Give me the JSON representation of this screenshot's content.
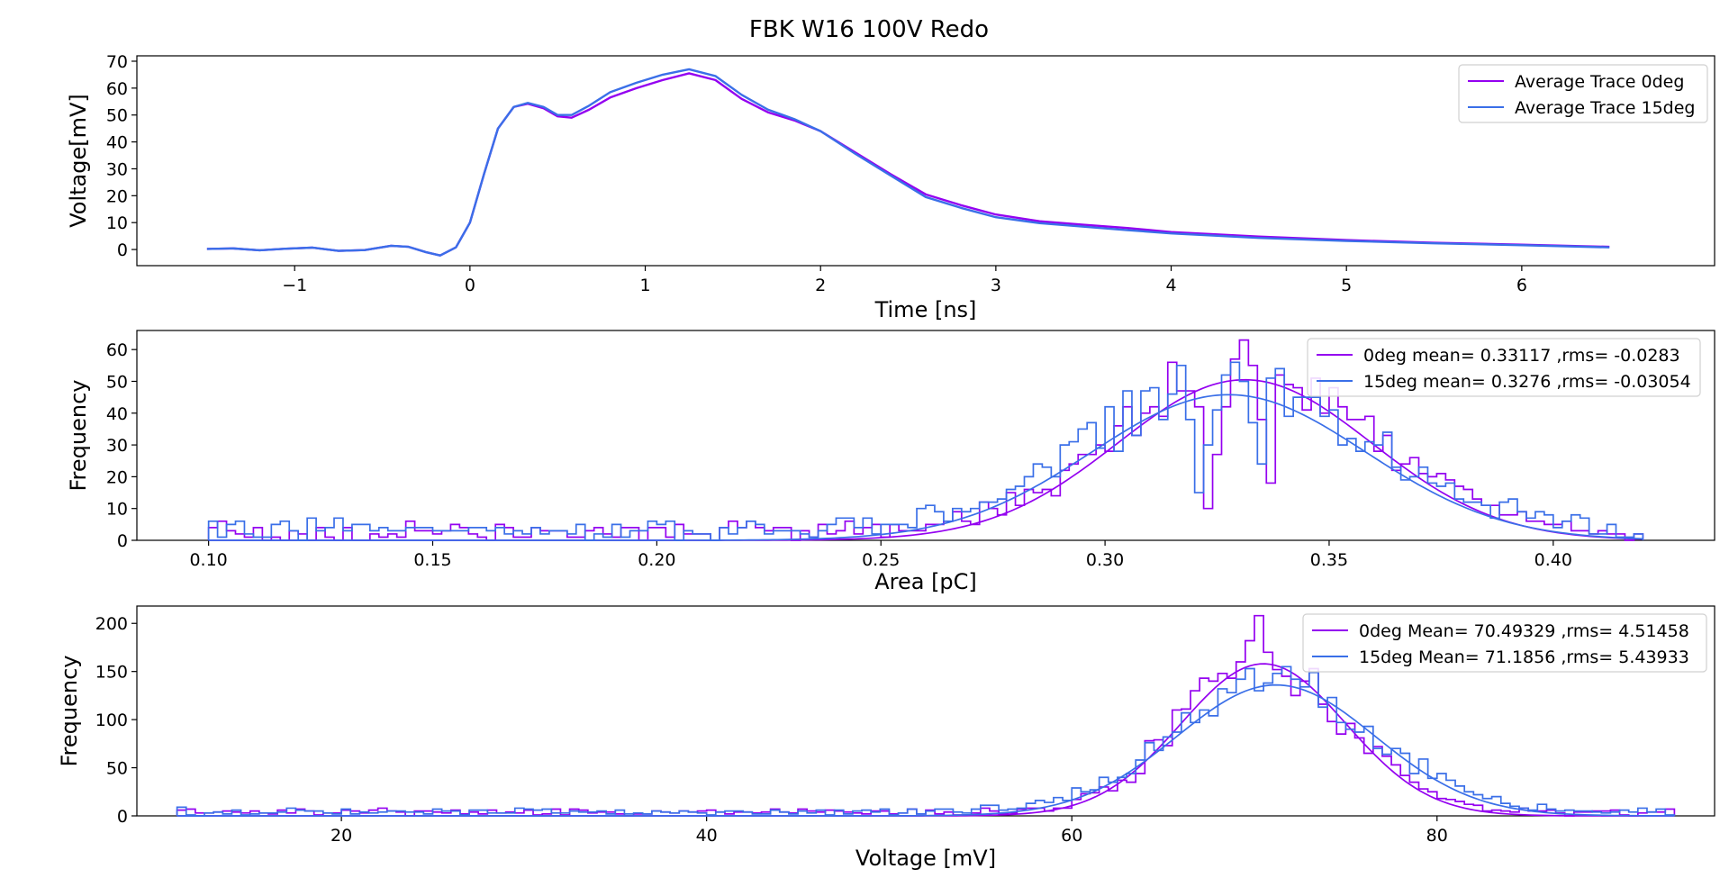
{
  "figure": {
    "suptitle": "FBK W16 100V Redo"
  },
  "colors": {
    "deg0": "#9400f0",
    "deg15": "#3a6fe8"
  },
  "chart_data": [
    {
      "type": "line",
      "xlabel": "Time [ns]",
      "ylabel": "Voltage[mV]",
      "xlim": [
        -1.9,
        7.1
      ],
      "ylim": [
        -6,
        72
      ],
      "xticks": [
        -1,
        0,
        1,
        2,
        3,
        4,
        5,
        6
      ],
      "xtick_labels": [
        "−1",
        "0",
        "1",
        "2",
        "3",
        "4",
        "5",
        "6"
      ],
      "yticks": [
        0,
        10,
        20,
        30,
        40,
        50,
        60,
        70
      ],
      "grid": false,
      "legend_position": "top-right",
      "series": [
        {
          "name": "Average Trace 0deg",
          "color": "#9400f0",
          "x": [
            -1.5,
            -1.35,
            -1.2,
            -1.05,
            -0.9,
            -0.75,
            -0.6,
            -0.45,
            -0.35,
            -0.25,
            -0.17,
            -0.08,
            0.0,
            0.08,
            0.16,
            0.25,
            0.33,
            0.42,
            0.5,
            0.58,
            0.68,
            0.8,
            0.95,
            1.1,
            1.25,
            1.4,
            1.55,
            1.7,
            1.85,
            2.0,
            2.2,
            2.4,
            2.6,
            2.8,
            3.0,
            3.25,
            3.5,
            3.75,
            4.0,
            4.5,
            5.0,
            5.5,
            6.0,
            6.5
          ],
          "y": [
            0.2,
            0.4,
            -0.3,
            0.3,
            0.7,
            -0.5,
            -0.2,
            1.4,
            1.0,
            -1.0,
            -2.2,
            0.8,
            10.0,
            28.0,
            45.0,
            53.0,
            54.2,
            52.5,
            49.5,
            49.0,
            52.0,
            56.5,
            60.0,
            63.0,
            65.5,
            63.0,
            56.0,
            51.0,
            48.0,
            44.0,
            36.0,
            28.0,
            20.5,
            16.5,
            13.0,
            10.5,
            9.2,
            8.0,
            6.5,
            4.8,
            3.5,
            2.5,
            1.8,
            1.0
          ]
        },
        {
          "name": "Average Trace 15deg",
          "color": "#3a6fe8",
          "x": [
            -1.5,
            -1.35,
            -1.2,
            -1.05,
            -0.9,
            -0.75,
            -0.6,
            -0.45,
            -0.35,
            -0.25,
            -0.17,
            -0.08,
            0.0,
            0.08,
            0.16,
            0.25,
            0.33,
            0.42,
            0.5,
            0.58,
            0.68,
            0.8,
            0.95,
            1.1,
            1.25,
            1.4,
            1.55,
            1.7,
            1.85,
            2.0,
            2.2,
            2.4,
            2.6,
            2.8,
            3.0,
            3.25,
            3.5,
            3.75,
            4.0,
            4.5,
            5.0,
            5.5,
            6.0,
            6.5
          ],
          "y": [
            0.2,
            0.4,
            -0.3,
            0.3,
            0.7,
            -0.5,
            -0.2,
            1.4,
            1.0,
            -1.0,
            -2.2,
            0.8,
            10.0,
            28.0,
            45.0,
            53.0,
            54.5,
            53.0,
            50.0,
            50.0,
            53.5,
            58.5,
            62.0,
            65.0,
            67.0,
            64.5,
            57.5,
            52.0,
            48.5,
            44.0,
            35.5,
            27.5,
            19.5,
            15.5,
            12.0,
            9.8,
            8.5,
            7.2,
            6.0,
            4.3,
            3.2,
            2.3,
            1.6,
            0.8
          ]
        }
      ]
    },
    {
      "type": "histogram",
      "xlabel": "Area [pC]",
      "ylabel": "Frequency",
      "xlim": [
        0.084,
        0.436
      ],
      "ylim": [
        0,
        66
      ],
      "xticks": [
        0.1,
        0.15,
        0.2,
        0.25,
        0.3,
        0.35,
        0.4
      ],
      "xtick_labels": [
        "0.10",
        "0.15",
        "0.20",
        "0.25",
        "0.30",
        "0.35",
        "0.40"
      ],
      "yticks": [
        0,
        10,
        20,
        30,
        40,
        50,
        60
      ],
      "grid": false,
      "legend_position": "top-right",
      "bins": {
        "start": 0.1,
        "end": 0.42,
        "count": 160
      },
      "series": [
        {
          "name": "0deg mean= 0.33117 ,rms= -0.0283",
          "color": "#9400f0",
          "fit": {
            "amplitude": 50.5,
            "mean": 0.33117,
            "sigma": 0.0283
          },
          "peak_counts": [
            63,
            57,
            55,
            42,
            38,
            27,
            18,
            10
          ],
          "tail_level": 2.8
        },
        {
          "name": "15deg mean= 0.3276 ,rms= -0.03054",
          "color": "#3a6fe8",
          "fit": {
            "amplitude": 45.8,
            "mean": 0.3276,
            "sigma": 0.03054
          },
          "peak_counts": [
            56,
            52,
            50,
            41,
            37,
            30,
            24,
            15
          ],
          "tail_level": 3.4
        }
      ]
    },
    {
      "type": "histogram",
      "xlabel": "Voltage [mV]",
      "ylabel": "Frequency",
      "xlim": [
        8.8,
        95.2
      ],
      "ylim": [
        0,
        218
      ],
      "xticks": [
        20,
        40,
        60,
        80
      ],
      "xtick_labels": [
        "20",
        "40",
        "60",
        "80"
      ],
      "yticks": [
        0,
        50,
        100,
        150,
        200
      ],
      "grid": false,
      "legend_position": "top-right",
      "bins": {
        "start": 11.0,
        "end": 93.0,
        "count": 164
      },
      "series": [
        {
          "name": "0deg Mean= 70.49329 ,rms= 4.51458",
          "color": "#9400f0",
          "fit": {
            "amplitude": 158,
            "mean": 70.49329,
            "sigma": 4.51458
          },
          "peak_counts": [
            208,
            182,
            170,
            160,
            152,
            143
          ],
          "tail_level": 4.0
        },
        {
          "name": "15deg Mean= 71.1856 ,rms= 5.43933",
          "color": "#3a6fe8",
          "fit": {
            "amplitude": 136,
            "mean": 71.1856,
            "sigma": 5.43933
          },
          "peak_counts": [
            155,
            148,
            142,
            138,
            134,
            130
          ],
          "tail_level": 4.5
        }
      ]
    }
  ]
}
